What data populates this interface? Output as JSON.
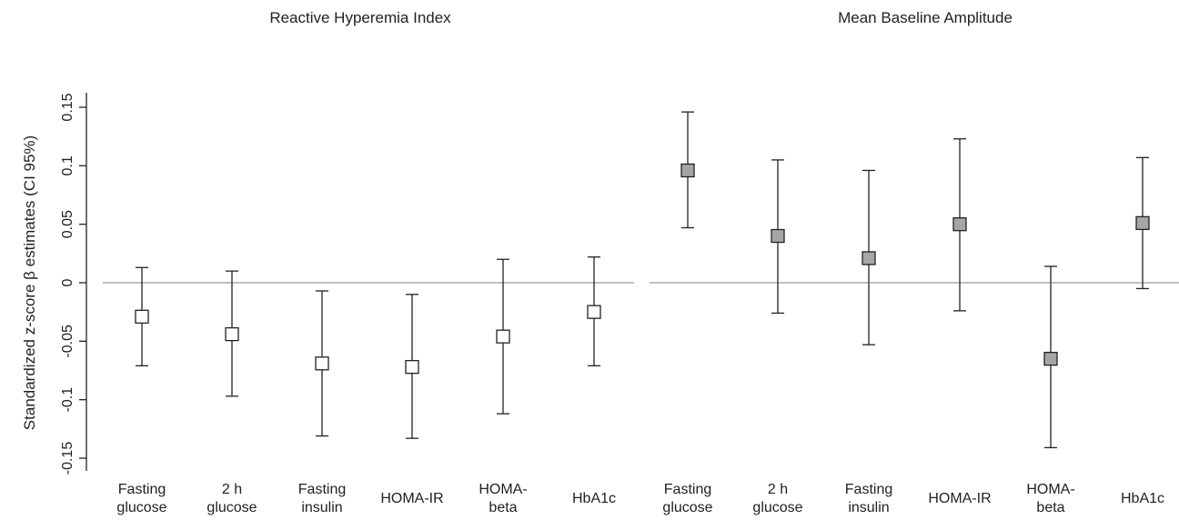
{
  "chart_data": {
    "type": "scatter",
    "subtype": "forest-plot-with-error-bars",
    "ylabel": "Standardized z-score β estimates (CI 95%)",
    "ylim": [
      -0.16,
      0.16
    ],
    "yticks": [
      -0.15,
      -0.1,
      -0.05,
      0,
      0.05,
      0.1,
      0.15
    ],
    "ytick_labels": [
      "-0.15",
      "-0.1",
      "-0.05",
      "0",
      "0.05",
      "0.1",
      "0.15"
    ],
    "reference_line": 0,
    "panels": [
      {
        "title": "Reactive Hyperemia Index",
        "marker_fill": "#ffffff",
        "categories": [
          [
            "Fasting",
            "glucose"
          ],
          [
            "2 h",
            "glucose"
          ],
          [
            "Fasting",
            "insulin"
          ],
          [
            "HOMA-IR"
          ],
          [
            "HOMA-",
            "beta"
          ],
          [
            "HbA1c"
          ]
        ],
        "estimate": [
          -0.029,
          -0.044,
          -0.069,
          -0.072,
          -0.046,
          -0.025
        ],
        "ci_low": [
          -0.071,
          -0.097,
          -0.131,
          -0.133,
          -0.112,
          -0.071
        ],
        "ci_high": [
          0.013,
          0.01,
          -0.007,
          -0.01,
          0.02,
          0.022
        ]
      },
      {
        "title": "Mean Baseline Amplitude",
        "marker_fill": "#a6a6a6",
        "categories": [
          [
            "Fasting",
            "glucose"
          ],
          [
            "2 h",
            "glucose"
          ],
          [
            "Fasting",
            "insulin"
          ],
          [
            "HOMA-IR"
          ],
          [
            "HOMA-",
            "beta"
          ],
          [
            "HbA1c"
          ]
        ],
        "estimate": [
          0.096,
          0.04,
          0.021,
          0.05,
          -0.065,
          0.051
        ],
        "ci_low": [
          0.047,
          -0.026,
          -0.053,
          -0.024,
          -0.141,
          -0.005
        ],
        "ci_high": [
          0.146,
          0.105,
          0.096,
          0.123,
          0.014,
          0.107
        ]
      }
    ],
    "grid": false,
    "legend": "none"
  },
  "colors": {
    "axis": "#222222",
    "reference_line": "#999999",
    "marker_edge": "#222222"
  }
}
